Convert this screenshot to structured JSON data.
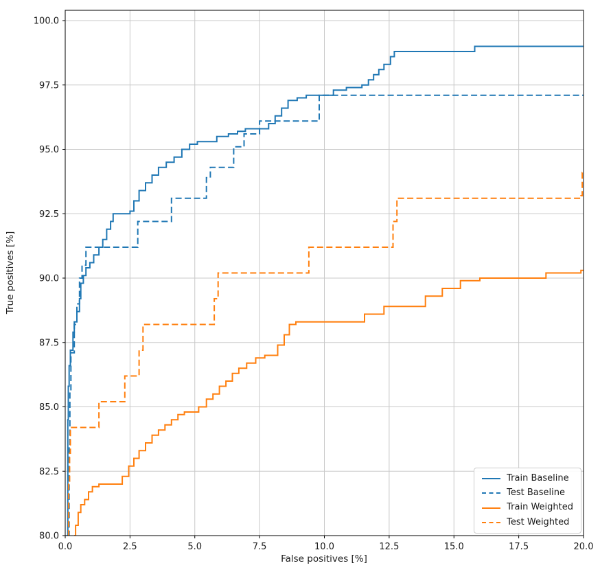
{
  "figure": {
    "background": "#ffffff",
    "spine_color": "#000000"
  },
  "chart_data": {
    "type": "line",
    "subtype": "step",
    "title": "",
    "xlabel": "False positives [%]",
    "ylabel": "True positives [%]",
    "xlim": [
      0,
      20
    ],
    "ylim": [
      80,
      100.4
    ],
    "grid": true,
    "grid_color": "#c8c8c8",
    "legend_position": "lower right",
    "xticks": [
      0,
      2.5,
      5,
      7.5,
      10,
      12.5,
      15,
      17.5,
      20
    ],
    "xtick_labels": [
      "0.0",
      "2.5",
      "5.0",
      "7.5",
      "10.0",
      "12.5",
      "15.0",
      "17.5",
      "20.0"
    ],
    "yticks": [
      80,
      82.5,
      85,
      87.5,
      90,
      92.5,
      95,
      97.5,
      100
    ],
    "ytick_labels": [
      "80.0",
      "82.5",
      "85.0",
      "87.5",
      "90.0",
      "92.5",
      "95.0",
      "97.5",
      "100.0"
    ],
    "series": [
      {
        "name": "Train Baseline",
        "color": "#1f77b4",
        "dash": "solid",
        "points": [
          [
            0.05,
            80.0
          ],
          [
            0.1,
            84.5
          ],
          [
            0.12,
            85.8
          ],
          [
            0.15,
            86.6
          ],
          [
            0.2,
            87.2
          ],
          [
            0.3,
            87.9
          ],
          [
            0.35,
            88.3
          ],
          [
            0.45,
            88.7
          ],
          [
            0.55,
            89.2
          ],
          [
            0.6,
            89.8
          ],
          [
            0.7,
            90.1
          ],
          [
            0.8,
            90.4
          ],
          [
            0.95,
            90.6
          ],
          [
            1.1,
            90.9
          ],
          [
            1.3,
            91.2
          ],
          [
            1.45,
            91.5
          ],
          [
            1.6,
            91.9
          ],
          [
            1.75,
            92.2
          ],
          [
            1.85,
            92.5
          ],
          [
            2.5,
            92.6
          ],
          [
            2.65,
            93.0
          ],
          [
            2.85,
            93.4
          ],
          [
            3.1,
            93.7
          ],
          [
            3.35,
            94.0
          ],
          [
            3.6,
            94.3
          ],
          [
            3.9,
            94.5
          ],
          [
            4.2,
            94.7
          ],
          [
            4.5,
            95.0
          ],
          [
            4.8,
            95.2
          ],
          [
            5.1,
            95.3
          ],
          [
            5.85,
            95.5
          ],
          [
            6.3,
            95.6
          ],
          [
            6.65,
            95.7
          ],
          [
            6.95,
            95.8
          ],
          [
            7.85,
            96.0
          ],
          [
            8.1,
            96.3
          ],
          [
            8.35,
            96.6
          ],
          [
            8.6,
            96.9
          ],
          [
            8.95,
            97.0
          ],
          [
            9.3,
            97.1
          ],
          [
            10.35,
            97.3
          ],
          [
            10.85,
            97.4
          ],
          [
            11.45,
            97.5
          ],
          [
            11.7,
            97.7
          ],
          [
            11.9,
            97.9
          ],
          [
            12.1,
            98.1
          ],
          [
            12.3,
            98.3
          ],
          [
            12.55,
            98.6
          ],
          [
            12.7,
            98.8
          ],
          [
            15.8,
            99.0
          ],
          [
            20.0,
            99.0
          ]
        ]
      },
      {
        "name": "Test Baseline",
        "color": "#1f77b4",
        "dash": "dashed",
        "points": [
          [
            0.1,
            80.0
          ],
          [
            0.15,
            83.5
          ],
          [
            0.18,
            85.6
          ],
          [
            0.22,
            87.1
          ],
          [
            0.35,
            88.2
          ],
          [
            0.45,
            89.0
          ],
          [
            0.55,
            90.0
          ],
          [
            0.65,
            90.5
          ],
          [
            0.8,
            91.2
          ],
          [
            2.8,
            92.2
          ],
          [
            4.1,
            93.1
          ],
          [
            5.45,
            93.9
          ],
          [
            5.6,
            94.3
          ],
          [
            6.5,
            95.1
          ],
          [
            6.9,
            95.6
          ],
          [
            7.5,
            96.1
          ],
          [
            9.8,
            97.1
          ],
          [
            20.0,
            97.1
          ]
        ]
      },
      {
        "name": "Train Weighted",
        "color": "#ff7f0e",
        "dash": "solid",
        "points": [
          [
            0.35,
            80.0
          ],
          [
            0.4,
            80.4
          ],
          [
            0.5,
            80.9
          ],
          [
            0.6,
            81.2
          ],
          [
            0.75,
            81.4
          ],
          [
            0.9,
            81.7
          ],
          [
            1.05,
            81.9
          ],
          [
            1.3,
            82.0
          ],
          [
            2.2,
            82.3
          ],
          [
            2.45,
            82.7
          ],
          [
            2.65,
            83.0
          ],
          [
            2.85,
            83.3
          ],
          [
            3.1,
            83.6
          ],
          [
            3.35,
            83.9
          ],
          [
            3.6,
            84.1
          ],
          [
            3.85,
            84.3
          ],
          [
            4.1,
            84.5
          ],
          [
            4.35,
            84.7
          ],
          [
            4.6,
            84.8
          ],
          [
            5.15,
            85.0
          ],
          [
            5.45,
            85.3
          ],
          [
            5.7,
            85.5
          ],
          [
            5.95,
            85.8
          ],
          [
            6.2,
            86.0
          ],
          [
            6.45,
            86.3
          ],
          [
            6.7,
            86.5
          ],
          [
            7.0,
            86.7
          ],
          [
            7.35,
            86.9
          ],
          [
            7.7,
            87.0
          ],
          [
            8.2,
            87.4
          ],
          [
            8.45,
            87.8
          ],
          [
            8.65,
            88.2
          ],
          [
            8.9,
            88.3
          ],
          [
            11.55,
            88.6
          ],
          [
            12.3,
            88.9
          ],
          [
            13.9,
            89.3
          ],
          [
            14.55,
            89.6
          ],
          [
            15.25,
            89.9
          ],
          [
            16.0,
            90.0
          ],
          [
            18.55,
            90.2
          ],
          [
            19.9,
            90.3
          ],
          [
            20.0,
            90.3
          ]
        ]
      },
      {
        "name": "Test Weighted",
        "color": "#ff7f0e",
        "dash": "dashed",
        "points": [
          [
            0.1,
            80.0
          ],
          [
            0.13,
            82.0
          ],
          [
            0.17,
            83.2
          ],
          [
            0.2,
            84.2
          ],
          [
            1.3,
            85.2
          ],
          [
            2.3,
            86.2
          ],
          [
            2.85,
            87.2
          ],
          [
            3.0,
            88.2
          ],
          [
            5.75,
            89.2
          ],
          [
            5.9,
            90.2
          ],
          [
            9.4,
            91.2
          ],
          [
            12.65,
            92.2
          ],
          [
            12.8,
            93.1
          ],
          [
            19.9,
            93.2
          ],
          [
            19.95,
            94.1
          ],
          [
            20.0,
            94.1
          ]
        ]
      }
    ]
  }
}
